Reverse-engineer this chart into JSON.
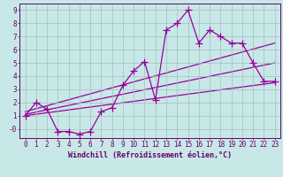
{
  "background_color": "#c8e8e8",
  "plot_bg_color": "#c8e8e8",
  "grid_color": "#a0c0c0",
  "line_color": "#990099",
  "xlabel": "Windchill (Refroidissement éolien,°C)",
  "xlim": [
    -0.5,
    23.5
  ],
  "ylim": [
    -0.7,
    9.5
  ],
  "xticks": [
    0,
    1,
    2,
    3,
    4,
    5,
    6,
    7,
    8,
    9,
    10,
    11,
    12,
    13,
    14,
    15,
    16,
    17,
    18,
    19,
    20,
    21,
    22,
    23
  ],
  "yticks": [
    0,
    1,
    2,
    3,
    4,
    5,
    6,
    7,
    8,
    9
  ],
  "ytick_labels": [
    "-0",
    "1",
    "2",
    "3",
    "4",
    "5",
    "6",
    "7",
    "8",
    "9"
  ],
  "scatter_x": [
    0,
    1,
    2,
    3,
    4,
    5,
    6,
    7,
    8,
    9,
    10,
    11,
    12,
    13,
    14,
    15,
    16,
    17,
    18,
    19,
    20,
    21,
    22,
    23
  ],
  "scatter_y": [
    1.0,
    2.0,
    1.5,
    -0.2,
    -0.2,
    -0.4,
    -0.2,
    1.3,
    1.6,
    3.3,
    4.4,
    5.1,
    2.2,
    7.5,
    8.0,
    9.0,
    6.5,
    7.5,
    7.0,
    6.5,
    6.5,
    5.0,
    3.6,
    3.6
  ],
  "reg_line1_x": [
    0,
    23
  ],
  "reg_line1_y": [
    1.0,
    3.5
  ],
  "reg_line2_x": [
    0,
    23
  ],
  "reg_line2_y": [
    1.3,
    6.5
  ],
  "reg_line3_x": [
    0,
    23
  ],
  "reg_line3_y": [
    1.1,
    5.0
  ],
  "marker_size": 3.5,
  "line_width": 0.9,
  "xlabel_fontsize": 6,
  "tick_fontsize": 5.5,
  "xlabel_color": "#660066",
  "tick_color": "#660066",
  "spine_color": "#660066"
}
